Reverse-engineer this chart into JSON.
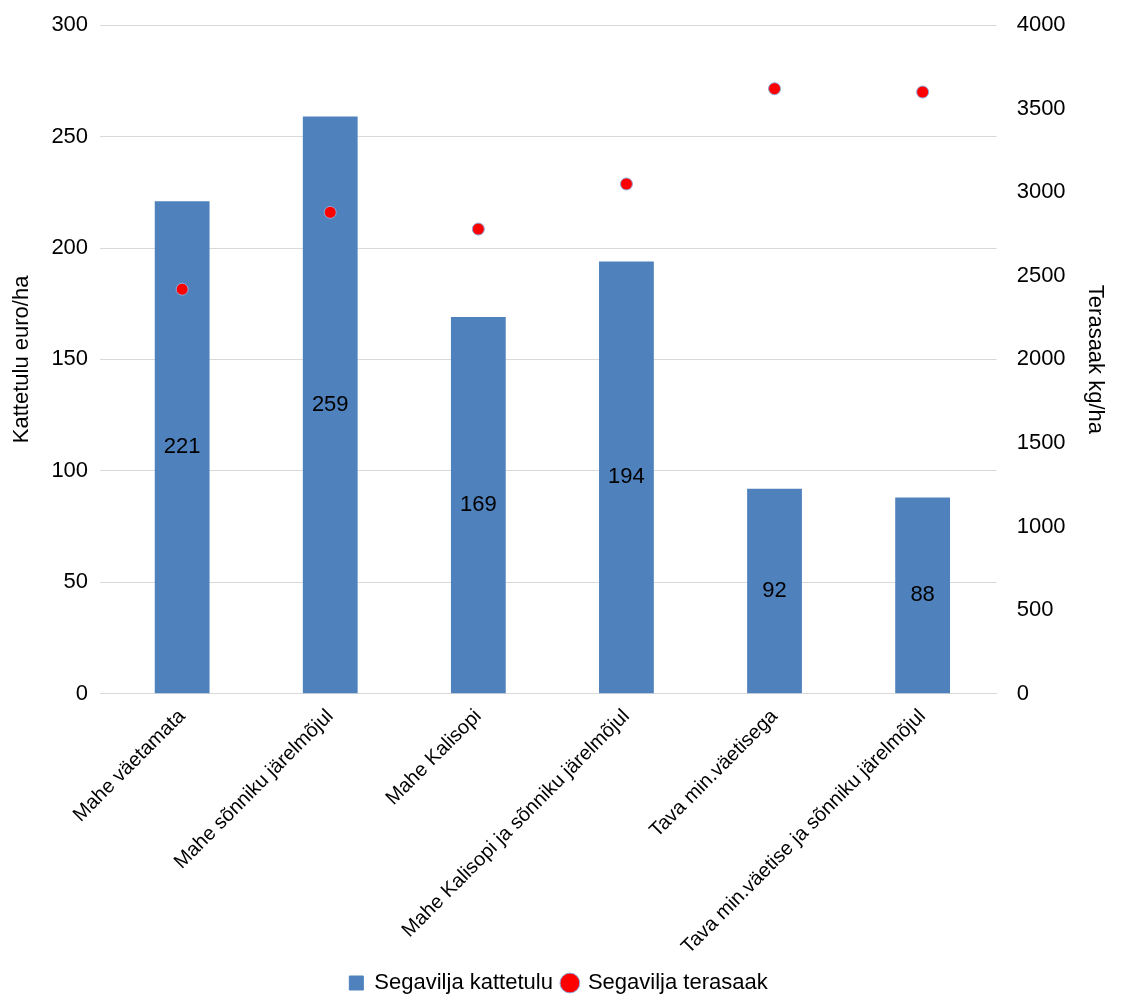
{
  "chart_data": {
    "type": "bar",
    "categories": [
      "Mahe väetamata",
      "Mahe sõnniku järelmõjul",
      "Mahe Kalisopi",
      "Mahe Kalisopi ja sõnniku järelmõjul",
      "Tava min.väetisega",
      "Tava min.väetise ja sõnniku järelmõjul"
    ],
    "series": [
      {
        "name": "Segavilja kattetulu",
        "color": "#4f81bd",
        "values": [
          221,
          259,
          169,
          194,
          92,
          88
        ]
      },
      {
        "name": "Segavilja terasaak",
        "type": "scatter",
        "axis": "y2",
        "color": "#ff0000",
        "values": [
          2420,
          2880,
          2780,
          3050,
          3620,
          3600
        ]
      }
    ],
    "ylabel": "Kattetulu euro/ha",
    "y2label": "Terasaak kg/ha",
    "ylim": [
      0,
      300
    ],
    "yticks": [
      0,
      50,
      100,
      150,
      200,
      250,
      300
    ],
    "y2lim": [
      0,
      4000
    ],
    "y2ticks": [
      0,
      500,
      1000,
      1500,
      2000,
      2500,
      3000,
      3500,
      4000
    ],
    "grid": "y",
    "legend": "bottom",
    "marker": "circle",
    "value_labels": [
      "221",
      "259",
      "169",
      "194",
      "92",
      "88"
    ]
  }
}
